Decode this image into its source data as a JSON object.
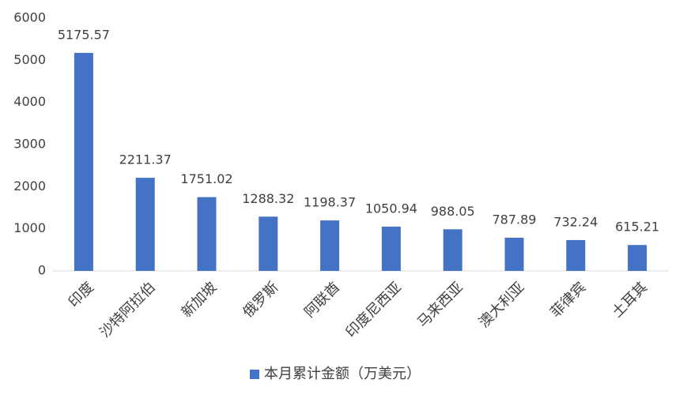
{
  "chart_data": {
    "type": "bar",
    "categories": [
      "印度",
      "沙特阿拉伯",
      "新加坡",
      "俄罗斯",
      "阿联酋",
      "印度尼西亚",
      "马来西亚",
      "澳大利亚",
      "菲律宾",
      "土耳其"
    ],
    "series": [
      {
        "name": "本月累计金额（万美元）",
        "color": "#4472c4",
        "values": [
          5175.57,
          2211.37,
          1751.02,
          1288.32,
          1198.37,
          1050.94,
          988.05,
          787.89,
          732.24,
          615.21
        ]
      }
    ],
    "ylim": [
      0,
      6000
    ],
    "yticks": [
      0,
      1000,
      2000,
      3000,
      4000,
      5000,
      6000
    ],
    "grid": false,
    "legend": "bottom"
  }
}
